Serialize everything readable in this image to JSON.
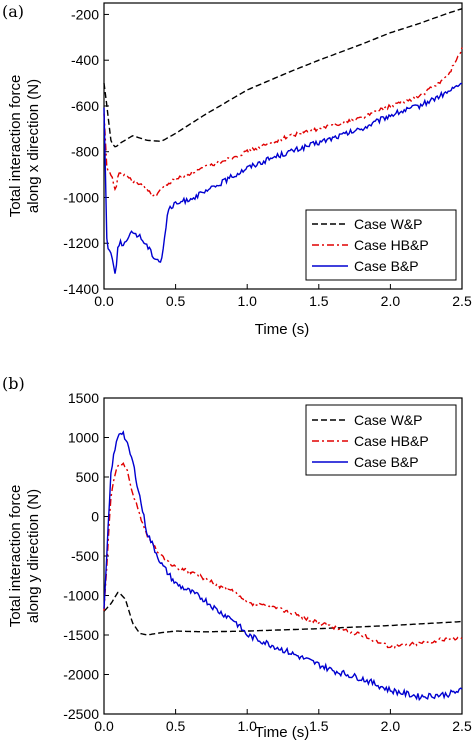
{
  "chart_data": [
    {
      "type": "line",
      "panel_label": "(a)",
      "xlabel": "Time (s)",
      "ylabel": [
        "Total interaction force",
        "along x direction (N)"
      ],
      "xlim": [
        0,
        2.5
      ],
      "ylim": [
        -1400,
        -150
      ],
      "xticks": [
        0.0,
        0.5,
        1.0,
        1.5,
        2.0,
        2.5
      ],
      "xtick_labels": [
        "0.0",
        "0.5",
        "1.0",
        "1.5",
        "2.0",
        "2.5"
      ],
      "yticks": [
        -1400,
        -1200,
        -1000,
        -800,
        -600,
        -400,
        -200
      ],
      "ytick_labels": [
        "-1400",
        "-1200",
        "-1000",
        "-800",
        "-600",
        "-400",
        "-200"
      ],
      "legend_position": "lower-right",
      "series": [
        {
          "name": "Case W&P",
          "color": "#000000",
          "dash": "dashed",
          "x": [
            0,
            0.02,
            0.05,
            0.08,
            0.12,
            0.2,
            0.3,
            0.4,
            0.5,
            0.7,
            1.0,
            1.3,
            1.5,
            1.8,
            2.0,
            2.2,
            2.4,
            2.5
          ],
          "y": [
            -500,
            -600,
            -760,
            -780,
            -760,
            -730,
            -750,
            -755,
            -720,
            -640,
            -530,
            -450,
            -400,
            -330,
            -280,
            -240,
            -195,
            -175
          ]
        },
        {
          "name": "Case HB&P",
          "color": "#e00000",
          "dash": "dashdot",
          "x": [
            0,
            0.02,
            0.05,
            0.08,
            0.1,
            0.15,
            0.2,
            0.3,
            0.35,
            0.4,
            0.5,
            0.7,
            1.0,
            1.3,
            1.5,
            1.8,
            2.0,
            2.2,
            2.4,
            2.5
          ],
          "y": [
            -640,
            -880,
            -900,
            -970,
            -900,
            -900,
            -930,
            -960,
            -1000,
            -960,
            -920,
            -870,
            -800,
            -730,
            -700,
            -650,
            -600,
            -560,
            -470,
            -350
          ]
        },
        {
          "name": "Case B&P",
          "color": "#0000d0",
          "dash": "solid",
          "x": [
            0,
            0.02,
            0.05,
            0.08,
            0.1,
            0.15,
            0.2,
            0.25,
            0.3,
            0.35,
            0.4,
            0.45,
            0.5,
            0.7,
            1.0,
            1.2,
            1.5,
            1.8,
            2.0,
            2.2,
            2.4,
            2.5
          ],
          "y": [
            -600,
            -1200,
            -1250,
            -1330,
            -1200,
            -1200,
            -1150,
            -1170,
            -1210,
            -1260,
            -1280,
            -1050,
            -1030,
            -980,
            -870,
            -820,
            -760,
            -700,
            -640,
            -600,
            -540,
            -500
          ]
        }
      ]
    },
    {
      "type": "line",
      "panel_label": "(b)",
      "xlabel": "Time (s)",
      "ylabel": [
        "Total interaction force",
        "along y direction (N)"
      ],
      "xlim": [
        0,
        2.5
      ],
      "ylim": [
        -2500,
        1500
      ],
      "xticks": [
        0.0,
        0.5,
        1.0,
        1.5,
        2.0,
        2.5
      ],
      "xtick_labels": [
        "0.0",
        "0.5",
        "1.0",
        "1.5",
        "2.0",
        "2.5"
      ],
      "yticks": [
        -2500,
        -2000,
        -1500,
        -1000,
        -500,
        0,
        500,
        1000,
        1500
      ],
      "ytick_labels": [
        "-2500",
        "-2000",
        "-1500",
        "-1000",
        "-500",
        "0",
        "500",
        "1000",
        "1500"
      ],
      "legend_position": "upper-right",
      "series": [
        {
          "name": "Case W&P",
          "color": "#000000",
          "dash": "dashed",
          "x": [
            0,
            0.05,
            0.1,
            0.15,
            0.2,
            0.25,
            0.3,
            0.4,
            0.5,
            0.7,
            1.0,
            1.5,
            2.0,
            2.5
          ],
          "y": [
            -1200,
            -1100,
            -950,
            -1050,
            -1350,
            -1480,
            -1500,
            -1470,
            -1450,
            -1460,
            -1450,
            -1420,
            -1380,
            -1330
          ]
        },
        {
          "name": "Case HB&P",
          "color": "#e00000",
          "dash": "dashdot",
          "x": [
            0,
            0.05,
            0.1,
            0.15,
            0.2,
            0.3,
            0.4,
            0.5,
            0.6,
            0.7,
            0.8,
            0.9,
            1.0,
            1.2,
            1.4,
            1.5,
            1.6,
            1.8,
            2.0,
            2.2,
            2.4,
            2.5
          ],
          "y": [
            -1200,
            300,
            680,
            650,
            300,
            -250,
            -500,
            -650,
            -700,
            -780,
            -880,
            -950,
            -1100,
            -1150,
            -1280,
            -1350,
            -1400,
            -1500,
            -1650,
            -1600,
            -1550,
            -1530
          ]
        },
        {
          "name": "Case B&P",
          "color": "#0000d0",
          "dash": "solid",
          "x": [
            0,
            0.05,
            0.1,
            0.13,
            0.2,
            0.3,
            0.4,
            0.5,
            0.6,
            0.7,
            0.8,
            0.9,
            1.0,
            1.2,
            1.4,
            1.6,
            1.8,
            2.0,
            2.2,
            2.4,
            2.5
          ],
          "y": [
            -1200,
            600,
            1050,
            1080,
            700,
            -200,
            -600,
            -850,
            -950,
            -1050,
            -1200,
            -1300,
            -1500,
            -1650,
            -1800,
            -1950,
            -2050,
            -2200,
            -2280,
            -2250,
            -2200
          ]
        }
      ]
    }
  ]
}
